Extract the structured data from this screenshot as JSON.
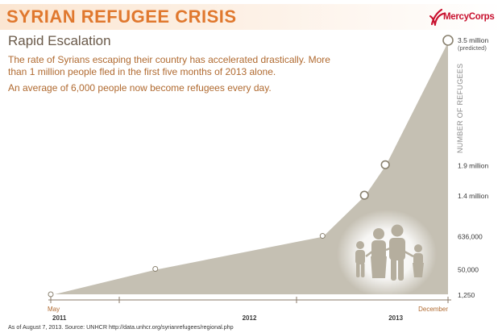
{
  "header": {
    "title": "SYRIAN REFUGEE CRISIS",
    "logo_text": "MercyCorps"
  },
  "subtitle": "Rapid Escalation",
  "description": [
    "The rate of Syrians escaping their country has accelerated drastically. More than 1 million people fled in the first five months of 2013 alone.",
    "An average of 6,000 people now become refugees every day."
  ],
  "footer": "As of August 7, 2013. Source: UNHCR http://data.unhcr.org/syrianrefugees/regional.php",
  "colors": {
    "banner_text": "#e0782e",
    "body_text": "#b06a30",
    "area_fill": "#c5c0b3",
    "line": "#ffffff",
    "axis": "#8a7a6a",
    "brand": "#c8102e"
  },
  "chart_data": {
    "type": "area",
    "title": "Rapid Escalation",
    "ylabel": "NUMBER OF REFUGEES",
    "xlabel": "",
    "x_range": [
      0,
      19
    ],
    "x_ticks": [
      {
        "x": 0,
        "label": "May"
      },
      {
        "x": 19,
        "label": "December"
      }
    ],
    "year_labels": [
      {
        "x": 0,
        "label": "2011"
      },
      {
        "x": 9.5,
        "label": "2012"
      },
      {
        "x": 16.5,
        "label": "2013"
      }
    ],
    "y_ticks": [
      {
        "label": "1,250",
        "level": 0
      },
      {
        "label": "50,000",
        "level": 0.1
      },
      {
        "label": "636,000",
        "level": 0.23
      },
      {
        "label": "1.4 million",
        "level": 0.39
      },
      {
        "label": "1.9 million",
        "level": 0.51
      },
      {
        "label": "3.5 million",
        "level": 1.0
      }
    ],
    "points": [
      {
        "x": 0,
        "value": 1250,
        "label": "1,250",
        "level": 0,
        "marker": "small"
      },
      {
        "x": 5,
        "value": 50000,
        "label": "50,000",
        "level": 0.1,
        "marker": "small"
      },
      {
        "x": 13,
        "value": 636000,
        "label": "636,000",
        "level": 0.23,
        "marker": "small"
      },
      {
        "x": 15,
        "value": 1400000,
        "label": "1.4 million",
        "level": 0.39,
        "marker": "medium"
      },
      {
        "x": 16,
        "value": 1900000,
        "label": "1.9 million",
        "level": 0.51,
        "marker": "medium"
      },
      {
        "x": 19,
        "value": 3500000,
        "label": "3.5 million",
        "level": 1.0,
        "marker": "large",
        "note": "(predicted)"
      }
    ]
  }
}
